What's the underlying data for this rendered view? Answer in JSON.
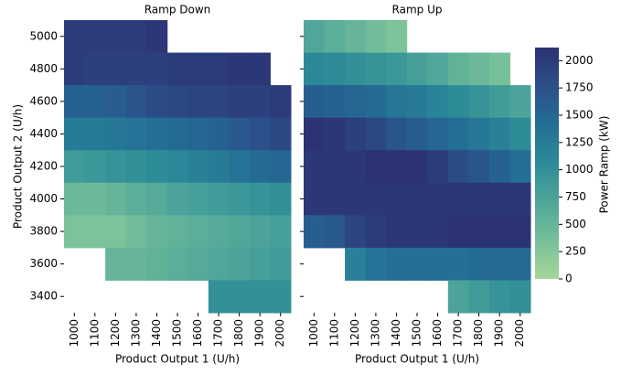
{
  "chart_data": {
    "type": "heatmap",
    "ylabel": "Product Output 2 (U/h)",
    "x_categories": [
      "1000",
      "1100",
      "1200",
      "1300",
      "1400",
      "1500",
      "1600",
      "1700",
      "1800",
      "1900",
      "2000"
    ],
    "y_categories": [
      "5000",
      "4800",
      "4600",
      "4400",
      "4200",
      "4000",
      "3800",
      "3600",
      "3400"
    ],
    "colorbar": {
      "label": "Power Ramp (kW)",
      "zlim": [
        0,
        2120
      ],
      "ticks": [
        0,
        250,
        500,
        750,
        1000,
        1250,
        1500,
        1750,
        2000
      ],
      "colors": [
        "#a7d698",
        "#76c09a",
        "#4fa699",
        "#2d8b98",
        "#236e95",
        "#2c4f8a",
        "#2c3172"
      ]
    },
    "panels": [
      {
        "title": "Ramp Down",
        "xlabel": "Product Output 1 (U/h)",
        "values": [
          [
            2000,
            2000,
            2000,
            2000,
            2050,
            null,
            null,
            null,
            null,
            null,
            null
          ],
          [
            2000,
            1950,
            1950,
            1950,
            1950,
            2000,
            2000,
            2000,
            2050,
            2050,
            null
          ],
          [
            1550,
            1550,
            1600,
            1700,
            1800,
            1850,
            1900,
            1900,
            1950,
            1950,
            2000
          ],
          [
            1250,
            1250,
            1300,
            1350,
            1400,
            1450,
            1500,
            1550,
            1650,
            1750,
            1850
          ],
          [
            850,
            900,
            950,
            1000,
            1050,
            1100,
            1200,
            1250,
            1350,
            1450,
            1500
          ],
          [
            450,
            450,
            500,
            600,
            650,
            750,
            800,
            850,
            900,
            950,
            1000
          ],
          [
            300,
            300,
            300,
            400,
            500,
            550,
            600,
            650,
            700,
            750,
            800
          ],
          [
            null,
            null,
            500,
            500,
            550,
            600,
            650,
            700,
            750,
            800,
            850
          ],
          [
            null,
            null,
            null,
            null,
            null,
            null,
            null,
            1000,
            1000,
            1000,
            1000
          ]
        ]
      },
      {
        "title": "Ramp Up",
        "xlabel": "Product Output 1 (U/h)",
        "values": [
          [
            700,
            600,
            500,
            400,
            300,
            null,
            null,
            null,
            null,
            null,
            null
          ],
          [
            1100,
            1050,
            1000,
            950,
            900,
            800,
            700,
            550,
            450,
            350,
            null
          ],
          [
            1600,
            1550,
            1500,
            1450,
            1300,
            1250,
            1150,
            1050,
            950,
            850,
            750
          ],
          [
            2100,
            2050,
            1950,
            1850,
            1700,
            1600,
            1500,
            1400,
            1300,
            1200,
            1050
          ],
          [
            2050,
            2050,
            2050,
            2100,
            2100,
            2100,
            2000,
            1800,
            1700,
            1550,
            1400
          ],
          [
            2050,
            2050,
            2050,
            2050,
            2050,
            2050,
            2050,
            2050,
            2050,
            2050,
            2050
          ],
          [
            1600,
            1650,
            1900,
            2000,
            2050,
            2050,
            2050,
            2100,
            2100,
            2100,
            2100
          ],
          [
            null,
            null,
            1200,
            1350,
            1400,
            1400,
            1400,
            1400,
            1450,
            1450,
            1450
          ],
          [
            null,
            null,
            null,
            null,
            null,
            null,
            null,
            750,
            850,
            950,
            1000
          ]
        ]
      }
    ]
  }
}
